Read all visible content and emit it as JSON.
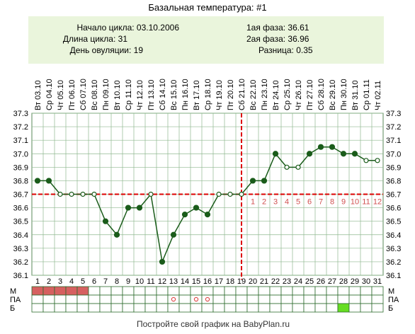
{
  "title": "Базальная температура: #1",
  "info": {
    "cycle_start": "Начало цикла: 03.10.2006",
    "cycle_length": "Длина цикла: 31",
    "ovulation_day": "День овуляции: 19",
    "phase1": "1ая фаза: 36.61",
    "phase2": "2ая фаза: 36.96",
    "difference": "Разница: 0.35"
  },
  "footer": "Постройте свой график на BabyPlan.ru",
  "row_labels": [
    "М",
    "ПА",
    "Б"
  ],
  "chart_data": {
    "type": "line",
    "title": "Базальная температура: #1",
    "x": [
      1,
      2,
      3,
      4,
      5,
      6,
      7,
      8,
      9,
      10,
      11,
      12,
      13,
      14,
      15,
      16,
      17,
      18,
      19,
      20,
      21,
      22,
      23,
      24,
      25,
      26,
      27,
      28,
      29,
      30,
      31
    ],
    "dates": [
      "Вт 03.10",
      "Ср 04.10",
      "Чт 05.10",
      "Пт 06.10",
      "Сб 07.10",
      "Вс 08.10",
      "Пн 09.10",
      "Вт 10.10",
      "Ср 11.10",
      "Чт 12.10",
      "Пт 13.10",
      "Сб 14.10",
      "Вс 15.10",
      "Пн 16.10",
      "Вт 17.10",
      "Ср 18.10",
      "Чт 19.10",
      "Пт 20.10",
      "Сб 21.10",
      "Вс 22.10",
      "Пн 23.10",
      "Вт 24.10",
      "Ср 25.10",
      "Чт 26.10",
      "Пт 27.10",
      "Сб 28.10",
      "Вс 29.10",
      "Пн 30.10",
      "Вт 31.10",
      "Ср 01.11",
      "Чт 02.11"
    ],
    "values": [
      36.8,
      36.8,
      36.7,
      36.7,
      36.7,
      36.7,
      36.5,
      36.4,
      36.6,
      36.6,
      36.7,
      36.2,
      36.4,
      36.55,
      36.6,
      36.55,
      36.7,
      36.7,
      36.7,
      36.8,
      36.8,
      37.0,
      36.9,
      36.9,
      37.0,
      37.05,
      37.05,
      37.0,
      37.0,
      36.95,
      36.95
    ],
    "open_markers": [
      3,
      4,
      5,
      6,
      11,
      17,
      18,
      19,
      23,
      24,
      30,
      31
    ],
    "ylim": [
      36.1,
      37.3
    ],
    "yticks": [
      "37.3",
      "37.2",
      "37.1",
      "37.0",
      "36.9",
      "36.8",
      "36.7",
      "36.6",
      "36.5",
      "36.4",
      "36.3",
      "36.2",
      "36.1"
    ],
    "coverline": 36.7,
    "ovulation_day": 19,
    "phase2_day_labels": [
      "1",
      "2",
      "3",
      "4",
      "5",
      "6",
      "7",
      "8",
      "9",
      "10",
      "11",
      "12"
    ],
    "menstruation_days": [
      1,
      2,
      3,
      4,
      5
    ],
    "pa_marks": [
      13,
      15,
      16
    ],
    "b_marks": [
      28
    ],
    "grid": true,
    "colors": {
      "line": "#1a5c1a",
      "marker_fill": "#1a5c1a",
      "coverline": "#dd0000",
      "grid": "#8fb88f",
      "header_bg": "#eaf5dc",
      "menstruation": "#d66060",
      "pa": "#dd4444",
      "b": "#66dd22",
      "phase2_labels": "#d05050"
    }
  }
}
